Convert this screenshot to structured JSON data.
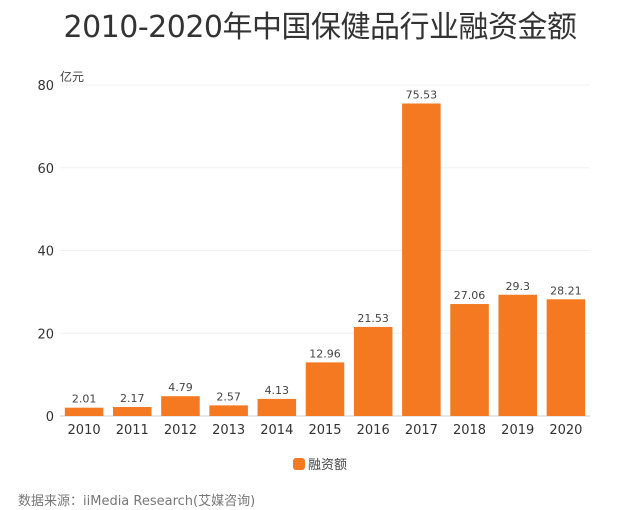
{
  "chart_data": {
    "type": "bar",
    "title": "2010-2020年中国保健品行业融资金额",
    "ylabel": "亿元",
    "xlabel": "",
    "categories": [
      "2010",
      "2011",
      "2012",
      "2013",
      "2014",
      "2015",
      "2016",
      "2017",
      "2018",
      "2019",
      "2020"
    ],
    "series": [
      {
        "name": "融资额",
        "values": [
          2.01,
          2.17,
          4.79,
          2.57,
          4.13,
          12.96,
          21.53,
          75.53,
          27.06,
          29.3,
          28.21
        ],
        "color": "#f47920"
      }
    ],
    "data_labels": [
      "2.01",
      "2.17",
      "4.79",
      "2.57",
      "4.13",
      "12.96",
      "21.53",
      "75.53",
      "27.06",
      "29.3",
      "28.21"
    ],
    "ylim": [
      0,
      80
    ],
    "yticks": [
      0,
      20,
      40,
      60,
      80
    ],
    "grid": true,
    "legend_position": "bottom"
  },
  "source": "数据来源：iiMedia Research(艾媒咨询)"
}
